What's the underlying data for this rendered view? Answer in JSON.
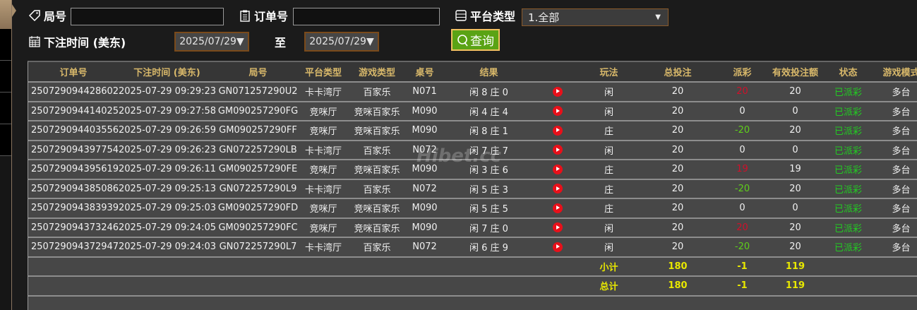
{
  "filters": {
    "round_label": "局号",
    "round_value": "",
    "order_label": "订单号",
    "order_value": "",
    "platform_label": "平台类型",
    "platform_value": "1.全部",
    "time_label": "下注时间 (美东)",
    "date_from": "2025/07/29",
    "to_label": "至",
    "date_to": "2025/07/29",
    "query_label": "查询"
  },
  "table": {
    "headers": [
      "订单号",
      "下注时间 (美东)",
      "局号",
      "平台类型",
      "游戏类型",
      "桌号",
      "结果",
      "",
      "玩法",
      "总投注",
      "派彩",
      "有效投注额",
      "状态",
      "游戏模式"
    ],
    "rows": [
      {
        "order": "250729094428602",
        "time": "2025-07-29 09:29:23",
        "round": "GN071257290U2",
        "platform": "卡卡湾厅",
        "game": "百家乐",
        "table": "N071",
        "result": "闲 8 庄 0",
        "play": "闲",
        "bet": "20",
        "payout": "20",
        "payout_color": "red",
        "valid": "20",
        "status": "已派彩",
        "mode": "多台"
      },
      {
        "order": "250729094414025",
        "time": "2025-07-29 09:27:58",
        "round": "GM090257290FG",
        "platform": "竞咪厅",
        "game": "竞咪百家乐",
        "table": "M090",
        "result": "闲 4 庄 4",
        "play": "闲",
        "bet": "20",
        "payout": "0",
        "payout_color": "white",
        "valid": "0",
        "status": "已派彩",
        "mode": "多台"
      },
      {
        "order": "250729094403556",
        "time": "2025-07-29 09:26:59",
        "round": "GM090257290FF",
        "platform": "竞咪厅",
        "game": "竞咪百家乐",
        "table": "M090",
        "result": "闲 8 庄 1",
        "play": "庄",
        "bet": "20",
        "payout": "-20",
        "payout_color": "green",
        "valid": "20",
        "status": "已派彩",
        "mode": "多台"
      },
      {
        "order": "250729094397754",
        "time": "2025-07-29 09:26:23",
        "round": "GN072257290LB",
        "platform": "卡卡湾厅",
        "game": "百家乐",
        "table": "N072",
        "result": "闲 7 庄 7",
        "play": "闲",
        "bet": "20",
        "payout": "0",
        "payout_color": "white",
        "valid": "0",
        "status": "已派彩",
        "mode": "多台"
      },
      {
        "order": "250729094395619",
        "time": "2025-07-29 09:26:11",
        "round": "GM090257290FE",
        "platform": "竞咪厅",
        "game": "竞咪百家乐",
        "table": "M090",
        "result": "闲 3 庄 6",
        "play": "庄",
        "bet": "20",
        "payout": "19",
        "payout_color": "red",
        "valid": "19",
        "status": "已派彩",
        "mode": "多台"
      },
      {
        "order": "250729094385086",
        "time": "2025-07-29 09:25:13",
        "round": "GN072257290L9",
        "platform": "卡卡湾厅",
        "game": "百家乐",
        "table": "N072",
        "result": "闲 5 庄 3",
        "play": "庄",
        "bet": "20",
        "payout": "-20",
        "payout_color": "green",
        "valid": "20",
        "status": "已派彩",
        "mode": "多台"
      },
      {
        "order": "250729094383939",
        "time": "2025-07-29 09:25:03",
        "round": "GM090257290FD",
        "platform": "竞咪厅",
        "game": "竞咪百家乐",
        "table": "M090",
        "result": "闲 5 庄 5",
        "play": "庄",
        "bet": "20",
        "payout": "0",
        "payout_color": "white",
        "valid": "0",
        "status": "已派彩",
        "mode": "多台"
      },
      {
        "order": "250729094373246",
        "time": "2025-07-29 09:24:05",
        "round": "GM090257290FC",
        "platform": "竞咪厅",
        "game": "竞咪百家乐",
        "table": "M090",
        "result": "闲 7 庄 0",
        "play": "闲",
        "bet": "20",
        "payout": "20",
        "payout_color": "red",
        "valid": "20",
        "status": "已派彩",
        "mode": "多台"
      },
      {
        "order": "250729094372947",
        "time": "2025-07-29 09:24:03",
        "round": "GN072257290L7",
        "platform": "卡卡湾厅",
        "game": "百家乐",
        "table": "N072",
        "result": "闲 6 庄 9",
        "play": "闲",
        "bet": "20",
        "payout": "-20",
        "payout_color": "green",
        "valid": "20",
        "status": "已派彩",
        "mode": "多台"
      }
    ],
    "subtotal": {
      "label": "小计",
      "bet": "180",
      "payout": "-1",
      "valid": "119"
    },
    "total": {
      "label": "总计",
      "bet": "180",
      "payout": "-1",
      "valid": "119"
    }
  },
  "watermark": "Hibet.cc",
  "colors": {
    "accent_green": "#5aa315",
    "header_text": "#d8b86a",
    "sum_text": "#e8e800",
    "win": "#d0102a",
    "loss": "#5fd01a"
  }
}
